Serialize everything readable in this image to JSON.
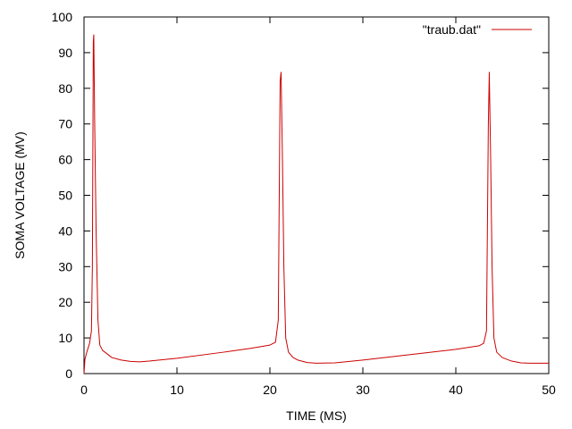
{
  "chart_data": {
    "type": "line",
    "xlabel": "TIME (MS)",
    "ylabel": "SOMA VOLTAGE (MV)",
    "xlim": [
      0,
      50
    ],
    "ylim": [
      0,
      100
    ],
    "xticks": [
      0,
      10,
      20,
      30,
      40,
      50
    ],
    "yticks": [
      0,
      10,
      20,
      30,
      40,
      50,
      60,
      70,
      80,
      90,
      100
    ],
    "grid": false,
    "legend_position": "top-right",
    "series": [
      {
        "name": "\"traub.dat\"",
        "color": "#cc0000",
        "points": [
          [
            0,
            0
          ],
          [
            0.1,
            4
          ],
          [
            0.3,
            6
          ],
          [
            0.6,
            8.5
          ],
          [
            0.8,
            12
          ],
          [
            0.9,
            30
          ],
          [
            1.0,
            93
          ],
          [
            1.05,
            95
          ],
          [
            1.15,
            70
          ],
          [
            1.3,
            40
          ],
          [
            1.5,
            15
          ],
          [
            1.7,
            8
          ],
          [
            2.0,
            6.5
          ],
          [
            2.5,
            5.5
          ],
          [
            3,
            4.5
          ],
          [
            4,
            3.8
          ],
          [
            5,
            3.4
          ],
          [
            6,
            3.3
          ],
          [
            7,
            3.5
          ],
          [
            10,
            4.3
          ],
          [
            15,
            6.0
          ],
          [
            18,
            7.1
          ],
          [
            20,
            8.0
          ],
          [
            20.6,
            8.8
          ],
          [
            20.9,
            15
          ],
          [
            21.1,
            82
          ],
          [
            21.2,
            84.5
          ],
          [
            21.35,
            60
          ],
          [
            21.5,
            30
          ],
          [
            21.7,
            10
          ],
          [
            22,
            6.0
          ],
          [
            22.5,
            4.5
          ],
          [
            23,
            3.8
          ],
          [
            24,
            3.1
          ],
          [
            25,
            2.9
          ],
          [
            27,
            3.0
          ],
          [
            30,
            3.8
          ],
          [
            35,
            5.3
          ],
          [
            40,
            6.8
          ],
          [
            42.5,
            7.8
          ],
          [
            43.0,
            8.5
          ],
          [
            43.3,
            12
          ],
          [
            43.5,
            70
          ],
          [
            43.6,
            84.5
          ],
          [
            43.75,
            60
          ],
          [
            43.9,
            30
          ],
          [
            44.1,
            10
          ],
          [
            44.4,
            6.0
          ],
          [
            45,
            4.5
          ],
          [
            46,
            3.5
          ],
          [
            47,
            3.0
          ],
          [
            48,
            2.9
          ],
          [
            50,
            2.9
          ]
        ]
      }
    ]
  }
}
